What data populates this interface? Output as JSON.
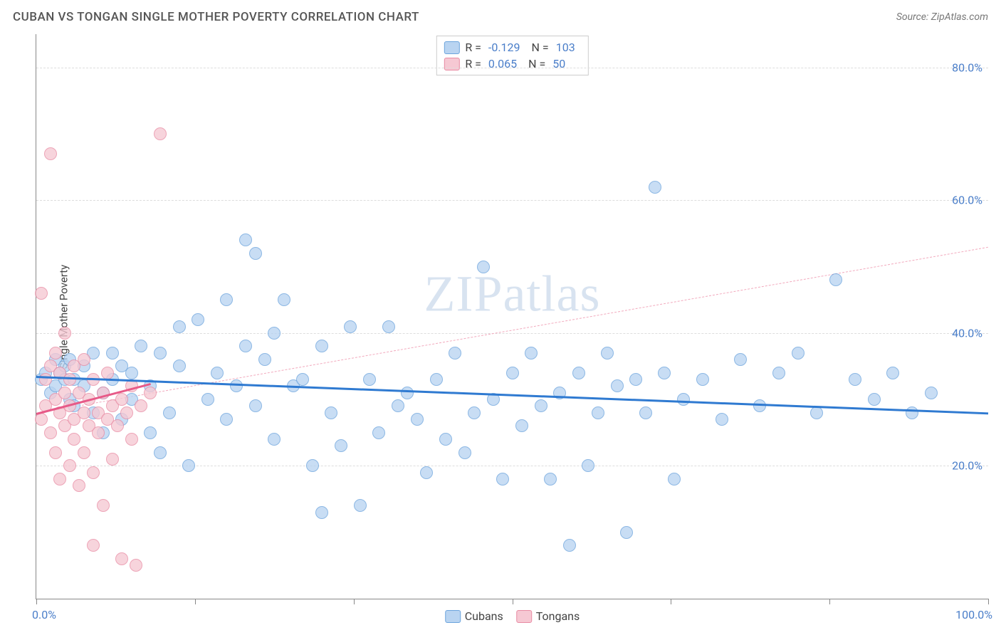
{
  "header": {
    "title": "CUBAN VS TONGAN SINGLE MOTHER POVERTY CORRELATION CHART",
    "source_prefix": "Source: ",
    "source": "ZipAtlas.com"
  },
  "chart": {
    "type": "scatter",
    "ylabel": "Single Mother Poverty",
    "xlim": [
      0,
      100
    ],
    "ylim": [
      0,
      85
    ],
    "y_ticks": [
      20,
      40,
      60,
      80
    ],
    "y_tick_labels": [
      "20.0%",
      "40.0%",
      "60.0%",
      "80.0%"
    ],
    "x_tick_count": 6,
    "x_label_min": "0.0%",
    "x_label_max": "100.0%",
    "background_color": "#ffffff",
    "grid_color": "#dddddd",
    "axis_color": "#888888",
    "tick_label_color": "#4a7ec9",
    "watermark": "ZIPatlas",
    "marker_radius": 9,
    "marker_border_width": 1.2,
    "series": {
      "cubans": {
        "label": "Cubans",
        "fill": "#b9d4f1",
        "stroke": "#6ca4dd",
        "opacity": 0.78,
        "trend": {
          "y_at_x0": 33.5,
          "y_at_x100": 28.0,
          "color": "#2f7ad1",
          "width": 3.2,
          "dash": "solid"
        },
        "trend_extrap": null,
        "points": [
          [
            0.5,
            33
          ],
          [
            1,
            34
          ],
          [
            1.5,
            31
          ],
          [
            2,
            36
          ],
          [
            2,
            32
          ],
          [
            2.5,
            34
          ],
          [
            3,
            33
          ],
          [
            3,
            35
          ],
          [
            3.5,
            30
          ],
          [
            3.5,
            36
          ],
          [
            4,
            33
          ],
          [
            4,
            29
          ],
          [
            5,
            35
          ],
          [
            5,
            32
          ],
          [
            6,
            28
          ],
          [
            6,
            37
          ],
          [
            7,
            31
          ],
          [
            7,
            25
          ],
          [
            8,
            33
          ],
          [
            8,
            37
          ],
          [
            9,
            35
          ],
          [
            9,
            27
          ],
          [
            10,
            34
          ],
          [
            10,
            30
          ],
          [
            11,
            38
          ],
          [
            12,
            25
          ],
          [
            12,
            32
          ],
          [
            13,
            22
          ],
          [
            13,
            37
          ],
          [
            14,
            28
          ],
          [
            15,
            35
          ],
          [
            15,
            41
          ],
          [
            16,
            20
          ],
          [
            17,
            42
          ],
          [
            18,
            30
          ],
          [
            19,
            34
          ],
          [
            20,
            27
          ],
          [
            20,
            45
          ],
          [
            21,
            32
          ],
          [
            22,
            54
          ],
          [
            22,
            38
          ],
          [
            23,
            52
          ],
          [
            23,
            29
          ],
          [
            24,
            36
          ],
          [
            25,
            40
          ],
          [
            25,
            24
          ],
          [
            26,
            45
          ],
          [
            27,
            32
          ],
          [
            28,
            33
          ],
          [
            29,
            20
          ],
          [
            30,
            13
          ],
          [
            30,
            38
          ],
          [
            31,
            28
          ],
          [
            32,
            23
          ],
          [
            33,
            41
          ],
          [
            34,
            14
          ],
          [
            35,
            33
          ],
          [
            36,
            25
          ],
          [
            37,
            41
          ],
          [
            38,
            29
          ],
          [
            39,
            31
          ],
          [
            40,
            27
          ],
          [
            41,
            19
          ],
          [
            42,
            33
          ],
          [
            43,
            24
          ],
          [
            44,
            37
          ],
          [
            45,
            22
          ],
          [
            46,
            28
          ],
          [
            47,
            50
          ],
          [
            48,
            30
          ],
          [
            49,
            18
          ],
          [
            50,
            34
          ],
          [
            51,
            26
          ],
          [
            52,
            37
          ],
          [
            53,
            29
          ],
          [
            54,
            18
          ],
          [
            55,
            31
          ],
          [
            56,
            8
          ],
          [
            57,
            34
          ],
          [
            58,
            20
          ],
          [
            59,
            28
          ],
          [
            60,
            37
          ],
          [
            61,
            32
          ],
          [
            62,
            10
          ],
          [
            63,
            33
          ],
          [
            64,
            28
          ],
          [
            65,
            62
          ],
          [
            66,
            34
          ],
          [
            67,
            18
          ],
          [
            68,
            30
          ],
          [
            70,
            33
          ],
          [
            72,
            27
          ],
          [
            74,
            36
          ],
          [
            76,
            29
          ],
          [
            78,
            34
          ],
          [
            80,
            37
          ],
          [
            82,
            28
          ],
          [
            84,
            48
          ],
          [
            86,
            33
          ],
          [
            88,
            30
          ],
          [
            90,
            34
          ],
          [
            92,
            28
          ],
          [
            94,
            31
          ]
        ]
      },
      "tongans": {
        "label": "Tongans",
        "fill": "#f6c8d3",
        "stroke": "#e88ba3",
        "opacity": 0.78,
        "trend": {
          "y_at_x0": 28.0,
          "y_at_x_end": 32.5,
          "x_end": 12,
          "color": "#e75a88",
          "width": 3.0,
          "dash": "solid"
        },
        "trend_extrap": {
          "y_at_x0": 28.0,
          "y_at_x100": 53.0,
          "color": "#f2a9bd",
          "width": 1.4,
          "dash": "6,5"
        },
        "points": [
          [
            0.5,
            27
          ],
          [
            0.5,
            46
          ],
          [
            1,
            33
          ],
          [
            1,
            29
          ],
          [
            1.5,
            25
          ],
          [
            1.5,
            35
          ],
          [
            1.5,
            67
          ],
          [
            2,
            30
          ],
          [
            2,
            22
          ],
          [
            2,
            37
          ],
          [
            2.5,
            28
          ],
          [
            2.5,
            34
          ],
          [
            2.5,
            18
          ],
          [
            3,
            31
          ],
          [
            3,
            26
          ],
          [
            3,
            40
          ],
          [
            3.5,
            29
          ],
          [
            3.5,
            33
          ],
          [
            3.5,
            20
          ],
          [
            4,
            27
          ],
          [
            4,
            35
          ],
          [
            4,
            24
          ],
          [
            4.5,
            31
          ],
          [
            4.5,
            17
          ],
          [
            5,
            28
          ],
          [
            5,
            36
          ],
          [
            5,
            22
          ],
          [
            5.5,
            30
          ],
          [
            5.5,
            26
          ],
          [
            6,
            33
          ],
          [
            6,
            19
          ],
          [
            6,
            8
          ],
          [
            6.5,
            28
          ],
          [
            6.5,
            25
          ],
          [
            7,
            31
          ],
          [
            7,
            14
          ],
          [
            7.5,
            27
          ],
          [
            7.5,
            34
          ],
          [
            8,
            29
          ],
          [
            8,
            21
          ],
          [
            8.5,
            26
          ],
          [
            9,
            30
          ],
          [
            9,
            6
          ],
          [
            9.5,
            28
          ],
          [
            10,
            32
          ],
          [
            10,
            24
          ],
          [
            10.5,
            5
          ],
          [
            11,
            29
          ],
          [
            12,
            31
          ],
          [
            13,
            70
          ]
        ]
      }
    },
    "legend_top": [
      {
        "swatch": "cubans",
        "r_label": "R =",
        "r": "-0.129",
        "n_label": "N =",
        "n": "103"
      },
      {
        "swatch": "tongans",
        "r_label": "R =",
        "r": "0.065",
        "n_label": "N =",
        "n": "50"
      }
    ],
    "legend_bottom": [
      {
        "swatch": "cubans",
        "label": "Cubans"
      },
      {
        "swatch": "tongans",
        "label": "Tongans"
      }
    ]
  }
}
